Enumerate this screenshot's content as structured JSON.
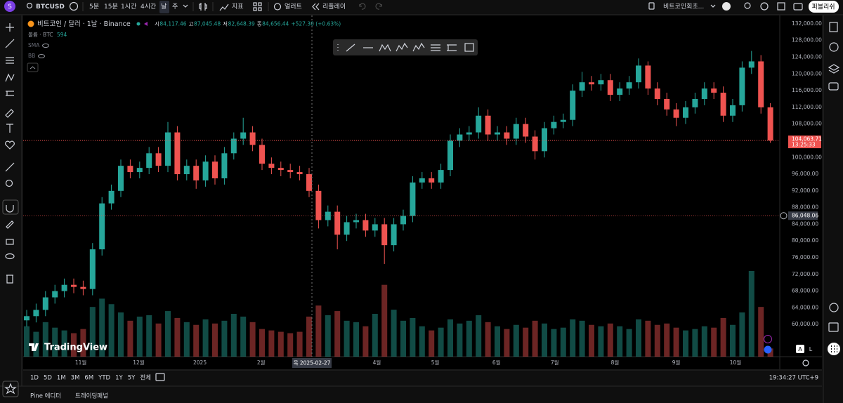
{
  "toolbar": {
    "avatar": "S",
    "symbol": "BTCUSD",
    "intervals": [
      "5분",
      "15분",
      "1시간",
      "4시간",
      "날",
      "주"
    ],
    "indicators": "지표",
    "alert": "얼러트",
    "replay": "리플레이",
    "layout_name": "비트코인회초...",
    "publish": "퍼블리쉬"
  },
  "chart_data": {
    "type": "candlestick",
    "title": "비트코인 / 달러 · 1날 · Binance",
    "ohlc_legend": {
      "open_label": "시",
      "open": "84,117.46",
      "high_label": "고",
      "high": "87,045.48",
      "low_label": "저",
      "low": "82,648.39",
      "close_label": "종",
      "close": "84,656.44",
      "change": "+527.30 (+0.63%)"
    },
    "indicators": [
      "볼륨 · BTC",
      "SMA",
      "BB"
    ],
    "watermark": "TradingView",
    "up_color": "#26a69a",
    "down_color": "#ef5350",
    "open": [
      61000,
      62000,
      63500,
      66500,
      68000,
      69500,
      69000,
      68500,
      78000,
      89000,
      92000,
      98000,
      96500,
      97500,
      101000,
      98000,
      106000,
      96000,
      98000,
      94500,
      99000,
      95000,
      101000,
      104500,
      106000,
      103000,
      98500,
      97500,
      97000,
      96500,
      96000,
      92000,
      85000,
      87000,
      81500,
      84500,
      85000,
      82500,
      84000,
      79000,
      84000,
      86000,
      94000,
      95000,
      94000,
      97000,
      104000,
      105500,
      106000,
      110000,
      105500,
      106000,
      104500,
      108000,
      105000,
      101500,
      107000,
      108500,
      109000,
      116000,
      118000,
      117500,
      118500,
      115000,
      116500,
      118000,
      122000,
      116500,
      114000,
      111500,
      109500,
      112000,
      114000,
      116500,
      115500,
      110000,
      112500,
      121500,
      123000,
      112000
    ],
    "high": [
      63500,
      65000,
      68000,
      69500,
      71000,
      71000,
      70500,
      79500,
      90500,
      93500,
      99500,
      99500,
      99000,
      102500,
      102500,
      108500,
      107500,
      99500,
      99500,
      100500,
      100500,
      102500,
      106000,
      109500,
      107500,
      104500,
      100000,
      99000,
      98500,
      98000,
      97500,
      93500,
      88500,
      88500,
      86000,
      86500,
      86500,
      85500,
      85500,
      85500,
      87500,
      95500,
      96500,
      96500,
      98500,
      105500,
      107000,
      107500,
      112000,
      111500,
      107500,
      107500,
      109500,
      109500,
      106500,
      108500,
      110000,
      110500,
      117500,
      120500,
      119500,
      120000,
      120000,
      118000,
      119500,
      123700,
      123000,
      118000,
      115500,
      113000,
      113500,
      115500,
      118000,
      118000,
      117000,
      114000,
      123000,
      125500,
      124500,
      113000
    ],
    "low": [
      59500,
      60500,
      62000,
      65000,
      66500,
      67500,
      67000,
      67000,
      76500,
      87500,
      90500,
      95000,
      95000,
      96000,
      96500,
      96500,
      94500,
      94500,
      92500,
      93000,
      93500,
      93500,
      99500,
      103000,
      101500,
      97000,
      96000,
      95500,
      95000,
      94500,
      90500,
      83000,
      83500,
      78000,
      80000,
      83000,
      81000,
      81000,
      74500,
      77500,
      82500,
      84500,
      92500,
      92500,
      92500,
      95500,
      102500,
      104000,
      104500,
      104000,
      104000,
      103000,
      103000,
      103500,
      99500,
      100000,
      105500,
      107000,
      107500,
      114500,
      116000,
      116000,
      113500,
      113500,
      115000,
      116500,
      115000,
      112500,
      110000,
      107500,
      108000,
      110500,
      112500,
      114000,
      108500,
      108500,
      111000,
      120000,
      110500,
      103500
    ],
    "close": [
      62000,
      63500,
      66500,
      68000,
      69500,
      69000,
      68500,
      78000,
      89000,
      92000,
      98000,
      96500,
      97500,
      101000,
      98000,
      106000,
      96000,
      98000,
      94500,
      99000,
      95000,
      101000,
      104500,
      106000,
      103000,
      98500,
      97500,
      97000,
      96500,
      96000,
      92000,
      85000,
      87000,
      81500,
      84500,
      85000,
      82500,
      84000,
      79000,
      84000,
      86000,
      94000,
      95000,
      94000,
      97000,
      104000,
      105500,
      106000,
      110000,
      105500,
      106000,
      104500,
      108000,
      105000,
      101500,
      107000,
      108500,
      109000,
      116000,
      118000,
      117500,
      118500,
      115000,
      116500,
      118000,
      122000,
      116500,
      114000,
      111500,
      109500,
      112000,
      114000,
      116500,
      115500,
      110000,
      112500,
      121500,
      123000,
      112000,
      104063.71
    ],
    "volume": [
      2200,
      1800,
      2500,
      2100,
      1900,
      1700,
      2000,
      3600,
      4200,
      3800,
      3200,
      2600,
      2900,
      3000,
      2400,
      3300,
      2800,
      2500,
      2300,
      2700,
      2400,
      2600,
      3100,
      2900,
      2500,
      2000,
      1900,
      1800,
      1700,
      1800,
      2900,
      3700,
      3000,
      3300,
      2600,
      2500,
      2200,
      3100,
      5200,
      3400,
      2600,
      2800,
      2200,
      1900,
      2100,
      2700,
      2400,
      2600,
      3000,
      2500,
      2200,
      2000,
      2300,
      2100,
      2600,
      2400,
      2000,
      2100,
      2700,
      2600,
      2300,
      2200,
      2400,
      2200,
      2000,
      2700,
      2600,
      2300,
      2400,
      2100,
      1900,
      2000,
      2200,
      2100,
      2800,
      2300,
      3200,
      6200,
      3600,
      594
    ],
    "ylim": [
      52300,
      134000
    ],
    "yticks": [
      {
        "value": 132000,
        "label": "132,000.00"
      },
      {
        "value": 128000,
        "label": "128,000.00"
      },
      {
        "value": 124000,
        "label": "124,000.00"
      },
      {
        "value": 120000,
        "label": "120,000.00"
      },
      {
        "value": 116000,
        "label": "116,000.00"
      },
      {
        "value": 112000,
        "label": "112,000.00"
      },
      {
        "value": 108000,
        "label": "108,000.00"
      },
      {
        "value": 100000,
        "label": "100,000.00"
      },
      {
        "value": 96000,
        "label": "96,000.00"
      },
      {
        "value": 92000,
        "label": "92,000.00"
      },
      {
        "value": 88000,
        "label": "88,000.00"
      },
      {
        "value": 84000,
        "label": "84,000.00"
      },
      {
        "value": 80000,
        "label": "80,000.00"
      },
      {
        "value": 76000,
        "label": "76,000.00"
      },
      {
        "value": 72000,
        "label": "72,000.00"
      },
      {
        "value": 68000,
        "label": "68,000.00"
      },
      {
        "value": 64000,
        "label": "64,000.00"
      },
      {
        "value": 60000,
        "label": "60,000.00"
      }
    ],
    "xticks": [
      {
        "value": 5.75,
        "label": "11월"
      },
      {
        "value": 11.9,
        "label": "12월"
      },
      {
        "value": 18.4,
        "label": "2025"
      },
      {
        "value": 24.9,
        "label": "2월"
      },
      {
        "value": 37.2,
        "label": "4월"
      },
      {
        "value": 43.4,
        "label": "5월"
      },
      {
        "value": 49.9,
        "label": "6월"
      },
      {
        "value": 56.1,
        "label": "7월"
      },
      {
        "value": 62.5,
        "label": "8월"
      },
      {
        "value": 69.0,
        "label": "9월"
      },
      {
        "value": 75.3,
        "label": "10월"
      }
    ],
    "last_price": {
      "value": 104063.71,
      "label": "104,063.71"
    },
    "countdown": "13:25:33",
    "crosshair": {
      "price": {
        "value": 86048.06,
        "label": "86,048.06"
      },
      "x": 30.3,
      "date_label": "목 2025-02-27"
    }
  },
  "price_axis_buttons": [
    "A",
    "L"
  ],
  "bottom_bar": {
    "ranges": [
      "1D",
      "5D",
      "1M",
      "3M",
      "6M",
      "YTD",
      "1Y",
      "5Y",
      "전체"
    ],
    "clock": "19:34:27 UTC+9"
  },
  "panels": {
    "tabs": [
      "Pine 에디터",
      "트레이딩패널"
    ]
  }
}
